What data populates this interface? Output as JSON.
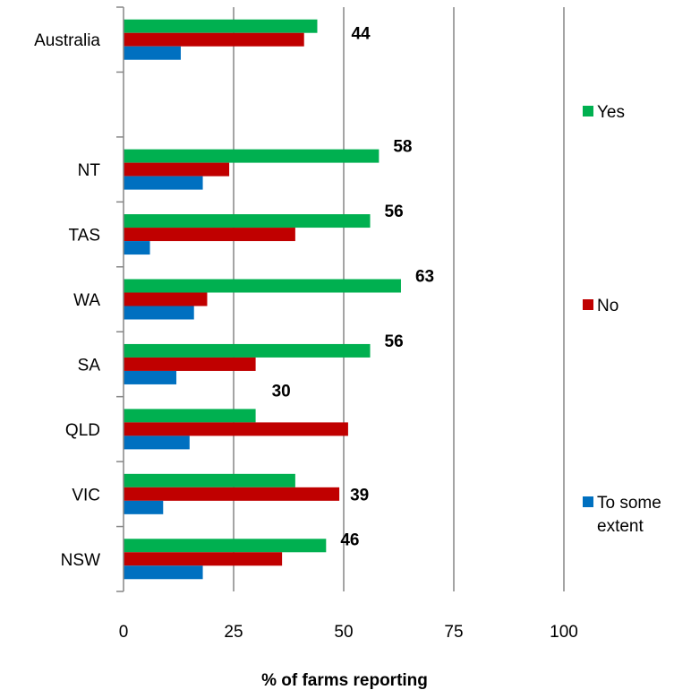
{
  "chart_data": {
    "type": "bar",
    "orientation": "horizontal",
    "categories": [
      "Australia",
      "",
      "NT",
      "TAS",
      "WA",
      "SA",
      "QLD",
      "VIC",
      "NSW"
    ],
    "series": [
      {
        "name": "Yes",
        "color": "#00b050",
        "values": [
          44,
          null,
          58,
          56,
          63,
          56,
          30,
          39,
          46
        ]
      },
      {
        "name": "No",
        "color": "#c00000",
        "values": [
          41,
          null,
          24,
          39,
          19,
          30,
          51,
          49,
          36
        ]
      },
      {
        "name": "To some extent",
        "color": "#0070c0",
        "values": [
          13,
          null,
          18,
          6,
          16,
          12,
          15,
          9,
          18
        ]
      }
    ],
    "data_labels": [
      {
        "category": "Australia",
        "text": "44"
      },
      {
        "category": "NT",
        "text": "58"
      },
      {
        "category": "TAS",
        "text": "56"
      },
      {
        "category": "WA",
        "text": "63"
      },
      {
        "category": "SA",
        "text": "56"
      },
      {
        "category": "QLD",
        "text": "30"
      },
      {
        "category": "VIC",
        "text": "39"
      },
      {
        "category": "NSW",
        "text": "46"
      }
    ],
    "x_ticks": [
      "0",
      "25",
      "50",
      "75",
      "100"
    ],
    "xlim": [
      0,
      100
    ],
    "xlabel": "% of farms reporting",
    "ylabel": "",
    "grid": "vertical",
    "legend": {
      "placement": "right",
      "entries": [
        "Yes",
        "No",
        "To some extent"
      ]
    }
  }
}
